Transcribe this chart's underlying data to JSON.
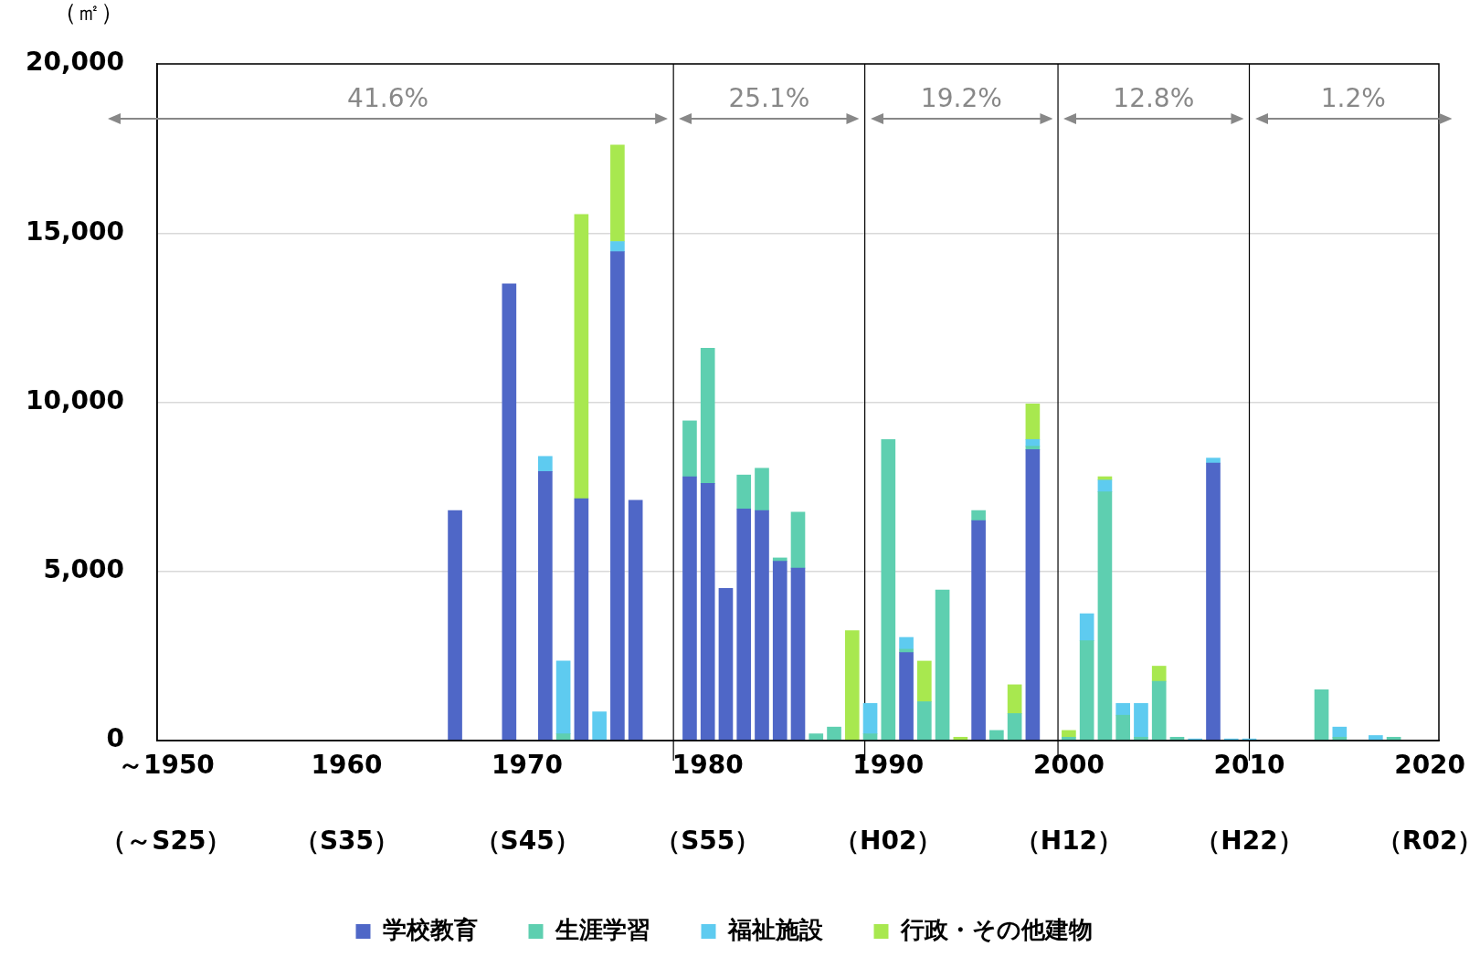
{
  "chart_data": {
    "type": "bar",
    "stacked": true,
    "ylabel": "（㎡）",
    "x": [
      1966,
      1969,
      1971,
      1972,
      1973,
      1974,
      1975,
      1976,
      1979,
      1980,
      1981,
      1982,
      1983,
      1984,
      1985,
      1986,
      1987,
      1988,
      1989,
      1990,
      1991,
      1992,
      1993,
      1994,
      1995,
      1996,
      1997,
      1998,
      2000,
      2001,
      2002,
      2003,
      2004,
      2005,
      2006,
      2007,
      2008,
      2009,
      2010,
      2014,
      2015,
      2017,
      2018
    ],
    "series": [
      {
        "name": "学校教育",
        "color": "#4f67c7",
        "values": [
          6800,
          13500,
          7950,
          null,
          7150,
          null,
          14450,
          7100,
          7800,
          7600,
          4500,
          6850,
          6800,
          5300,
          5100,
          null,
          null,
          null,
          null,
          null,
          2600,
          null,
          null,
          null,
          6500,
          null,
          null,
          8600,
          null,
          null,
          null,
          null,
          null,
          null,
          null,
          null,
          8200,
          null,
          null,
          null,
          null,
          null,
          null
        ]
      },
      {
        "name": "生涯学習",
        "color": "#5ecfb0",
        "values": [
          null,
          null,
          null,
          200,
          null,
          null,
          null,
          null,
          1650,
          4000,
          null,
          1000,
          1250,
          100,
          1650,
          200,
          400,
          null,
          200,
          8900,
          100,
          1150,
          4450,
          null,
          300,
          300,
          800,
          100,
          100,
          2950,
          7350,
          750,
          100,
          1750,
          100,
          null,
          null,
          null,
          null,
          1500,
          100,
          null,
          100
        ]
      },
      {
        "name": "福祉施設",
        "color": "#5ecbf0",
        "values": [
          null,
          null,
          450,
          2150,
          null,
          850,
          300,
          null,
          null,
          null,
          null,
          null,
          null,
          null,
          null,
          null,
          null,
          null,
          900,
          null,
          350,
          null,
          null,
          null,
          null,
          null,
          null,
          200,
          null,
          800,
          350,
          350,
          1000,
          null,
          null,
          50,
          150,
          50,
          50,
          null,
          300,
          150,
          null
        ]
      },
      {
        "name": "行政・その他建物",
        "color": "#a8e84f",
        "values": [
          null,
          null,
          null,
          null,
          8400,
          null,
          2850,
          null,
          null,
          null,
          null,
          null,
          null,
          null,
          null,
          null,
          null,
          3250,
          null,
          null,
          null,
          1200,
          null,
          100,
          null,
          null,
          850,
          1050,
          200,
          null,
          100,
          null,
          null,
          450,
          null,
          null,
          null,
          null,
          null,
          null,
          null,
          null,
          null
        ]
      }
    ],
    "xlim": [
      1949.5,
      2020.5
    ],
    "xticks": [
      {
        "value": 1950,
        "label": "～1950"
      },
      1960,
      1970,
      1980,
      1990,
      2000,
      2010,
      2020
    ],
    "ylim": [
      0,
      20000
    ],
    "yticks": [
      {
        "value": 0,
        "label": "0"
      },
      {
        "value": 5000,
        "label": "5,000"
      },
      {
        "value": 10000,
        "label": "10,000"
      },
      {
        "value": 15000,
        "label": "15,000"
      },
      {
        "value": 20000,
        "label": "20,000"
      }
    ],
    "grid": "y",
    "legend": "bottom",
    "ref_lines": [
      {
        "axis": "x",
        "value": 1978.1,
        "color": "#000000"
      },
      {
        "axis": "x",
        "value": 1988.7,
        "color": "#000000"
      },
      {
        "axis": "x",
        "value": 1999.4,
        "color": "#000000"
      },
      {
        "axis": "x",
        "value": 2010,
        "color": "#000000"
      }
    ],
    "annotations": [
      "41.6%",
      "25.1%",
      "19.2%",
      "12.8%",
      "1.2%",
      "（～S25）",
      "（S35）",
      "（S45）",
      "（S55）",
      "（H02）",
      "（H12）",
      "（H22）",
      "（R02）"
    ]
  }
}
